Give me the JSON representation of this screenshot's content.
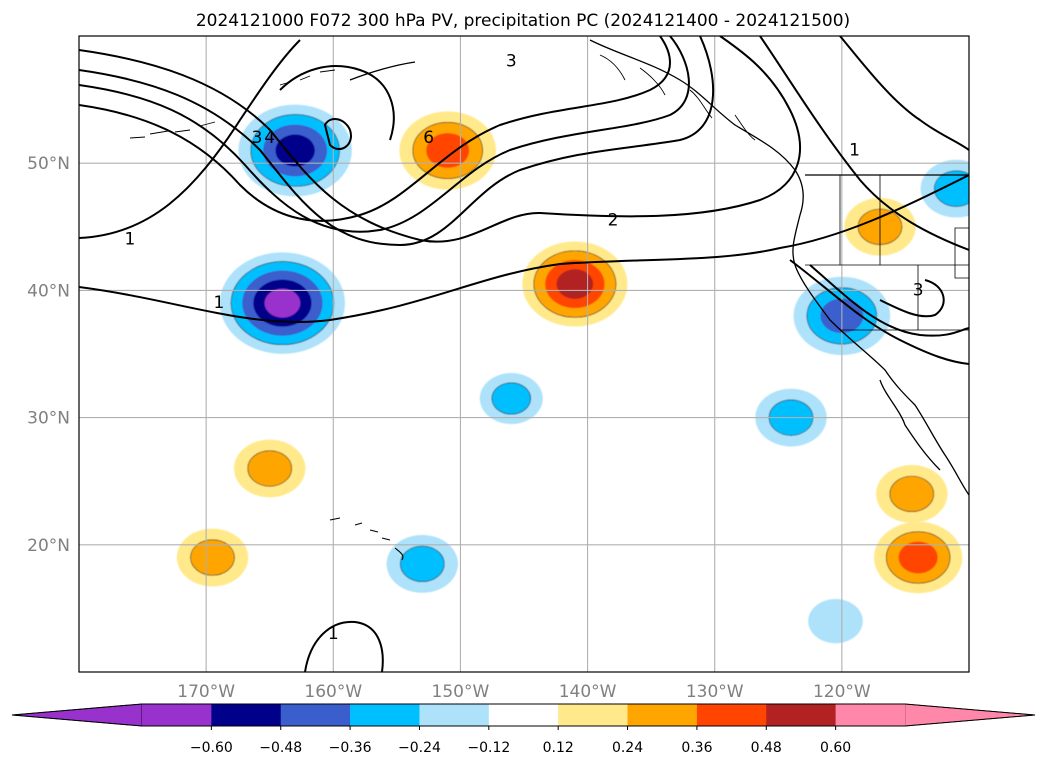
{
  "chart_data": {
    "type": "map",
    "title": "2024121000 F072 300 hPa PV, precipitation PC (2024121400 - 2024121500)",
    "extent": {
      "lon": [
        -180,
        -110
      ],
      "lat": [
        10,
        60
      ]
    },
    "grid": true,
    "x_ticks": [
      {
        "lon": -170,
        "label": "170°W"
      },
      {
        "lon": -160,
        "label": "160°W"
      },
      {
        "lon": -150,
        "label": "150°W"
      },
      {
        "lon": -140,
        "label": "140°W"
      },
      {
        "lon": -130,
        "label": "130°W"
      },
      {
        "lon": -120,
        "label": "120°W"
      }
    ],
    "y_ticks": [
      {
        "lat": 50,
        "label": "50°N"
      },
      {
        "lat": 40,
        "label": "40°N"
      },
      {
        "lat": 30,
        "label": "30°N"
      },
      {
        "lat": 20,
        "label": "20°N"
      }
    ],
    "colorbar": {
      "levels": [
        "−0.60",
        "−0.48",
        "−0.36",
        "−0.24",
        "−0.12",
        "0.12",
        "0.24",
        "0.36",
        "0.48",
        "0.60"
      ],
      "colors": [
        "#9932CC",
        "#00008B",
        "#3A5FCD",
        "#00BFFF",
        "#ADE2FA",
        "#FFFFFF",
        "#FFE98A",
        "#FFA500",
        "#FF4500",
        "#B22222",
        "#FF88AA"
      ]
    },
    "precip_anomalies": [
      {
        "lon": -163,
        "lat": 51,
        "value": -0.55
      },
      {
        "lon": -164,
        "lat": 39,
        "value": -0.62
      },
      {
        "lon": -151,
        "lat": 51,
        "value": 0.45
      },
      {
        "lon": -141,
        "lat": 40.5,
        "value": 0.5
      },
      {
        "lon": -120,
        "lat": 38,
        "value": -0.45
      },
      {
        "lon": -117,
        "lat": 45,
        "value": 0.3
      },
      {
        "lon": -124,
        "lat": 30,
        "value": -0.3
      },
      {
        "lon": -146,
        "lat": 31.5,
        "value": -0.25
      },
      {
        "lon": -165,
        "lat": 26,
        "value": 0.3
      },
      {
        "lon": -169.5,
        "lat": 19,
        "value": 0.3
      },
      {
        "lon": -114,
        "lat": 19,
        "value": 0.4
      },
      {
        "lon": -114.5,
        "lat": 24,
        "value": 0.3
      },
      {
        "lon": -111,
        "lat": 48,
        "value": -0.3
      },
      {
        "lon": -153,
        "lat": 18.5,
        "value": -0.3
      },
      {
        "lon": -120.5,
        "lat": 14,
        "value": -0.2
      }
    ],
    "pv_contours": [
      {
        "label": "1",
        "lon": -176,
        "lat": 44
      },
      {
        "label": "1",
        "lon": -169,
        "lat": 39
      },
      {
        "label": "1",
        "lon": -160,
        "lat": 13
      },
      {
        "label": "1",
        "lon": -119,
        "lat": 51
      },
      {
        "label": "2",
        "lon": -138,
        "lat": 45.5
      },
      {
        "label": "3",
        "lon": -114,
        "lat": 40
      },
      {
        "label": "3",
        "lon": -146,
        "lat": 58
      },
      {
        "label": "3",
        "lon": -166,
        "lat": 52
      },
      {
        "label": "4",
        "lon": -165,
        "lat": 52
      },
      {
        "label": "6",
        "lon": -152.5,
        "lat": 52
      }
    ]
  }
}
